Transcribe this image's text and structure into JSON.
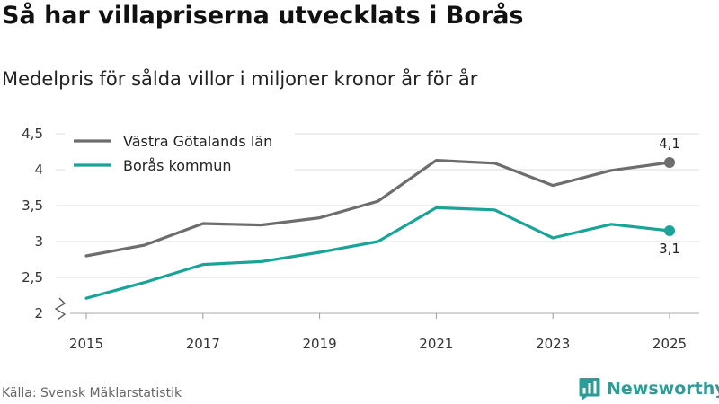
{
  "chart_data": {
    "type": "line",
    "title": "Så har villapriserna utvecklats i Borås",
    "subtitle": "Medelpris för sålda villor i miljoner kronor år för år",
    "x": [
      2015,
      2016,
      2017,
      2018,
      2019,
      2020,
      2021,
      2022,
      2023,
      2024,
      2025
    ],
    "x_tick_labels": [
      "2015",
      "2017",
      "2019",
      "2021",
      "2023",
      "2025"
    ],
    "y_tick_labels": [
      "2",
      "2,5",
      "3",
      "3,5",
      "4",
      "4,5"
    ],
    "ylim": [
      2,
      4.5
    ],
    "grid": true,
    "legend_position": "top-left",
    "series": [
      {
        "name": "Västra Götalands län",
        "color": "#6d6d6d",
        "values": [
          2.8,
          2.95,
          3.25,
          3.23,
          3.33,
          3.56,
          4.13,
          4.09,
          3.78,
          3.99,
          4.1
        ],
        "end_label": "4,1"
      },
      {
        "name": "Borås kommun",
        "color": "#1aa397",
        "values": [
          2.21,
          2.43,
          2.68,
          2.72,
          2.85,
          3.0,
          3.47,
          3.44,
          3.05,
          3.24,
          3.15
        ],
        "end_label": "3,1"
      }
    ]
  },
  "source": "Källa: Svensk Mäklarstatistik",
  "brand": {
    "name": "Newsworthy",
    "icon": "bar-chart-icon",
    "color": "#2e9c96"
  }
}
